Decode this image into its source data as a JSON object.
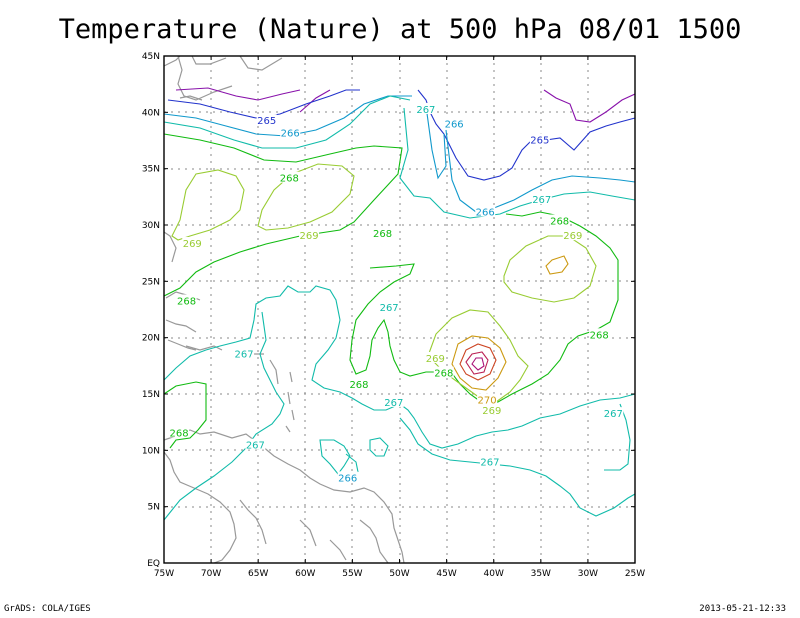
{
  "title": "Temperature (Nature) at 500 hPa 08/01 1500",
  "footer": {
    "left": "GrADS: COLA/IGES",
    "right": "2013-05-21-12:33"
  },
  "colors": {
    "c265": "#2233cc",
    "c266": "#1199cc",
    "c267": "#11bbaa",
    "c268": "#11bb11",
    "c269": "#99cc33",
    "c270": "#cc9911",
    "c271": "#cc4422",
    "c272": "#aa1177",
    "c264": "#8811aa",
    "coast": "#999999",
    "grid": "#888888"
  },
  "axes": {
    "lat_labels": [
      "45N",
      "40N",
      "35N",
      "30N",
      "25N",
      "20N",
      "15N",
      "10N",
      "5N",
      "EQ"
    ],
    "lon_labels": [
      "75W",
      "70W",
      "65W",
      "60W",
      "55W",
      "50W",
      "45W",
      "40W",
      "35W",
      "30W",
      "25W"
    ]
  },
  "contour_labels": [
    {
      "text": "265",
      "lon": -64.1,
      "lat": 39.3,
      "color": "c265"
    },
    {
      "text": "266",
      "lon": -61.6,
      "lat": 38.2,
      "color": "c266"
    },
    {
      "text": "267",
      "lon": -47.2,
      "lat": 40.3,
      "color": "c267"
    },
    {
      "text": "266",
      "lon": -44.2,
      "lat": 39.0,
      "color": "c266"
    },
    {
      "text": "265",
      "lon": -35.1,
      "lat": 37.6,
      "color": "c265"
    },
    {
      "text": "268",
      "lon": -61.7,
      "lat": 34.2,
      "color": "c268"
    },
    {
      "text": "267",
      "lon": -34.9,
      "lat": 32.3,
      "color": "c267"
    },
    {
      "text": "266",
      "lon": -40.9,
      "lat": 31.2,
      "color": "c266"
    },
    {
      "text": "268",
      "lon": -33.0,
      "lat": 30.4,
      "color": "c268"
    },
    {
      "text": "269",
      "lon": -72.0,
      "lat": 28.4,
      "color": "c269"
    },
    {
      "text": "269",
      "lon": -59.6,
      "lat": 29.1,
      "color": "c269"
    },
    {
      "text": "268",
      "lon": -51.8,
      "lat": 29.3,
      "color": "c268"
    },
    {
      "text": "269",
      "lon": -31.6,
      "lat": 29.1,
      "color": "c269"
    },
    {
      "text": "268",
      "lon": -72.6,
      "lat": 23.3,
      "color": "c268"
    },
    {
      "text": "267",
      "lon": -51.1,
      "lat": 22.7,
      "color": "c267"
    },
    {
      "text": "267",
      "lon": -66.5,
      "lat": 18.6,
      "color": "c267"
    },
    {
      "text": "269",
      "lon": -46.2,
      "lat": 18.2,
      "color": "c269"
    },
    {
      "text": "268",
      "lon": -28.8,
      "lat": 20.3,
      "color": "c268"
    },
    {
      "text": "268",
      "lon": -45.3,
      "lat": 16.9,
      "color": "c268"
    },
    {
      "text": "268",
      "lon": -54.3,
      "lat": 15.9,
      "color": "c268"
    },
    {
      "text": "267",
      "lon": -50.6,
      "lat": 14.3,
      "color": "c267"
    },
    {
      "text": "270",
      "lon": -40.7,
      "lat": 14.5,
      "color": "c270"
    },
    {
      "text": "269",
      "lon": -40.2,
      "lat": 13.6,
      "color": "c269"
    },
    {
      "text": "267",
      "lon": -27.3,
      "lat": 13.3,
      "color": "c267"
    },
    {
      "text": "268",
      "lon": -73.4,
      "lat": 11.6,
      "color": "c268"
    },
    {
      "text": "267",
      "lon": -65.3,
      "lat": 10.5,
      "color": "c267"
    },
    {
      "text": "267",
      "lon": -40.4,
      "lat": 9.0,
      "color": "c267"
    },
    {
      "text": "266",
      "lon": -55.5,
      "lat": 7.6,
      "color": "c266"
    }
  ]
}
